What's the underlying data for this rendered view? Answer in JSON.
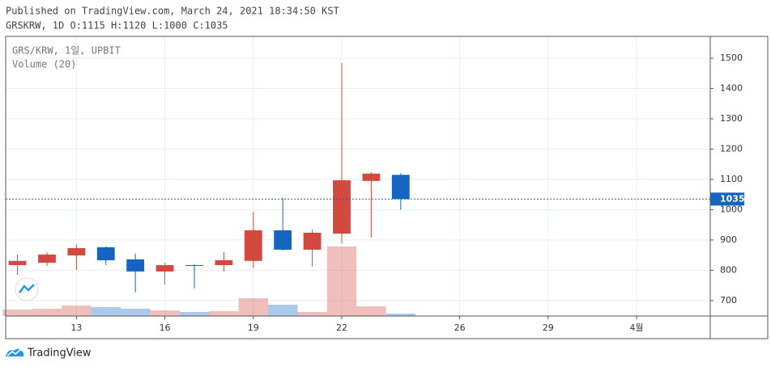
{
  "chart_data": {
    "type": "candlestick",
    "published": "Published on TradingView.com, March 24, 2021 18:34:50 KST",
    "symbol_info": "GRSKRW, 1D O:1115 H:1120 L:1000 C:1035",
    "legend_symbol": "GRS/KRW, 1일, UPBIT",
    "legend_volume": "Volume (20)",
    "brand": "TradingView",
    "x": [
      11,
      12,
      13,
      14,
      15,
      16,
      17,
      18,
      19,
      20,
      21,
      22,
      23,
      24
    ],
    "open": [
      817,
      825,
      849,
      876,
      836,
      796,
      817,
      817,
      831,
      932,
      868,
      921,
      1095,
      1115
    ],
    "high": [
      852,
      860,
      884,
      879,
      855,
      825,
      820,
      860,
      993,
      1039,
      935,
      1484,
      1124,
      1120
    ],
    "low": [
      785,
      815,
      801,
      817,
      727,
      753,
      740,
      796,
      807,
      865,
      812,
      889,
      908,
      1000
    ],
    "close": [
      831,
      852,
      873,
      833,
      796,
      817,
      815,
      833,
      932,
      868,
      924,
      1097,
      1119,
      1035
    ],
    "volume": [
      8,
      9,
      13,
      11,
      9,
      7,
      5,
      6,
      22,
      14,
      5,
      86,
      12,
      3
    ],
    "up_color": "#d1493f",
    "down_color": "#1565c0",
    "ylim": [
      649,
      1572
    ],
    "yticks": [
      700,
      800,
      900,
      1000,
      1100,
      1200,
      1300,
      1400,
      1500
    ],
    "xlim": [
      10.6,
      34.5
    ],
    "xticks": [
      13,
      16,
      19,
      22,
      26,
      29,
      {
        "value": 32,
        "label": "4월"
      }
    ],
    "grid": true
  }
}
